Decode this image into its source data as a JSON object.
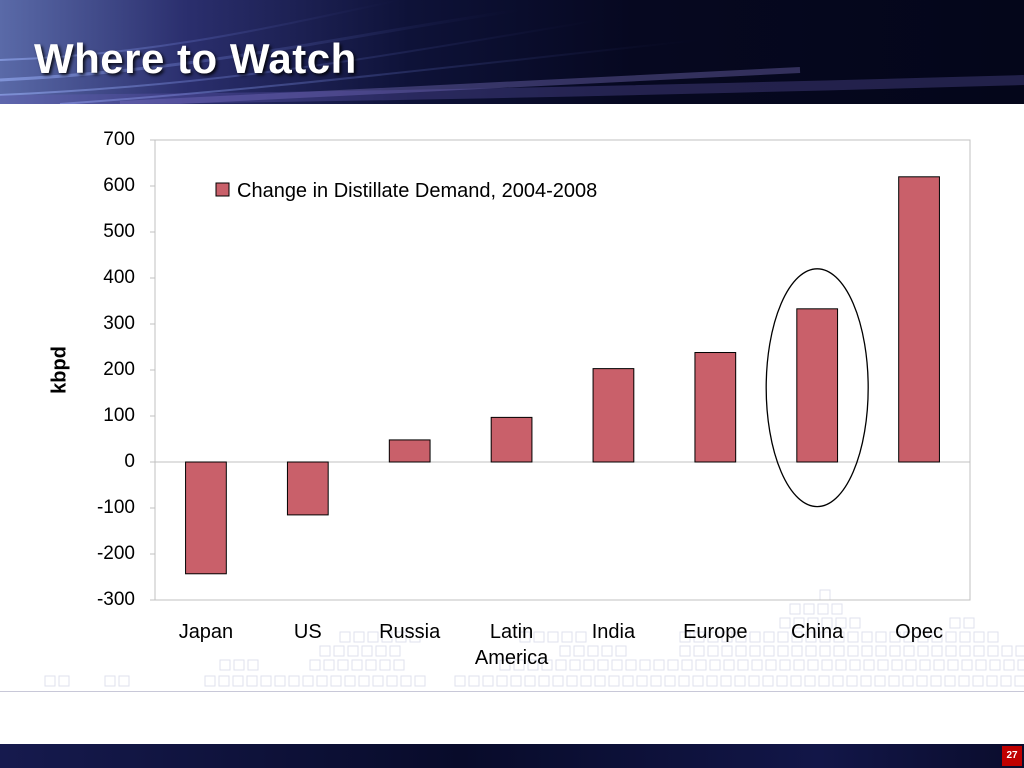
{
  "slide": {
    "title": "Where to Watch",
    "page_number": "27"
  },
  "colors": {
    "bar_fill": "#c9606a",
    "bar_stroke": "#000000",
    "plot_border": "#c0c0c0",
    "highlight_ellipse": "#000000",
    "page_badge": "#c00000"
  },
  "chart_data": {
    "type": "bar",
    "categories": [
      "Japan",
      "US",
      "Russia",
      "Latin America",
      "India",
      "Europe",
      "China",
      "Opec"
    ],
    "category_lines": [
      [
        "Japan"
      ],
      [
        "US"
      ],
      [
        "Russia"
      ],
      [
        "Latin",
        "America"
      ],
      [
        "India"
      ],
      [
        "Europe"
      ],
      [
        "China"
      ],
      [
        "Opec"
      ]
    ],
    "series": [
      {
        "name": "Change in Distillate Demand, 2004-2008",
        "values": [
          -243,
          -115,
          48,
          97,
          203,
          238,
          333,
          620
        ]
      }
    ],
    "xlabel": "",
    "ylabel": "kbpd",
    "ylim": [
      -300,
      700
    ],
    "yticks": [
      -300,
      -200,
      -100,
      0,
      100,
      200,
      300,
      400,
      500,
      600,
      700
    ],
    "grid": false,
    "legend_position": "top-left",
    "highlight_category": "China"
  }
}
